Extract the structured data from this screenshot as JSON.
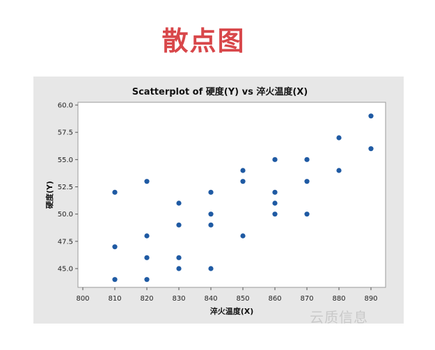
{
  "heading": "散点图",
  "watermark": "云质信息",
  "chart_data": {
    "type": "scatter",
    "title": "Scatterplot of 硬度(Y) vs 淬火温度(X)",
    "xlabel": "淬火温度(X)",
    "ylabel": "硬度(Y)",
    "xlim": [
      800,
      890
    ],
    "ylim": [
      44,
      60
    ],
    "xticks": [
      800,
      810,
      820,
      830,
      840,
      850,
      860,
      870,
      880,
      890
    ],
    "yticks": [
      45.0,
      47.5,
      50.0,
      52.5,
      55.0,
      57.5,
      60.0
    ],
    "ytick_labels": [
      "45.0",
      "47.5",
      "50.0",
      "52.5",
      "55.0",
      "57.5",
      "60.0"
    ],
    "grid": false,
    "color": "#1f5aa3",
    "points": [
      {
        "x": 810,
        "y": 52
      },
      {
        "x": 810,
        "y": 47
      },
      {
        "x": 810,
        "y": 44
      },
      {
        "x": 820,
        "y": 53
      },
      {
        "x": 820,
        "y": 48
      },
      {
        "x": 820,
        "y": 46
      },
      {
        "x": 820,
        "y": 44
      },
      {
        "x": 830,
        "y": 51
      },
      {
        "x": 830,
        "y": 49
      },
      {
        "x": 830,
        "y": 46
      },
      {
        "x": 830,
        "y": 45
      },
      {
        "x": 840,
        "y": 52
      },
      {
        "x": 840,
        "y": 50
      },
      {
        "x": 840,
        "y": 49
      },
      {
        "x": 840,
        "y": 45
      },
      {
        "x": 850,
        "y": 54
      },
      {
        "x": 850,
        "y": 53
      },
      {
        "x": 850,
        "y": 48
      },
      {
        "x": 860,
        "y": 55
      },
      {
        "x": 860,
        "y": 52
      },
      {
        "x": 860,
        "y": 51
      },
      {
        "x": 860,
        "y": 50
      },
      {
        "x": 870,
        "y": 55
      },
      {
        "x": 870,
        "y": 53
      },
      {
        "x": 870,
        "y": 50
      },
      {
        "x": 880,
        "y": 57
      },
      {
        "x": 880,
        "y": 54
      },
      {
        "x": 890,
        "y": 59
      },
      {
        "x": 890,
        "y": 56
      }
    ]
  }
}
